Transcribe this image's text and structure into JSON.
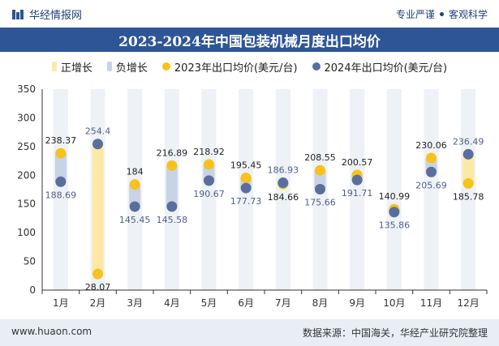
{
  "header": {
    "brand": "华经情报网",
    "tag1": "专业严谨",
    "tag2": "客观科学"
  },
  "footer": {
    "website": "www.huaon.com",
    "source": "数据来源：中国海关，华经产业研究院整理"
  },
  "legend": {
    "pos": "正增长",
    "neg": "负增长",
    "s2023": "2023年出口均价(美元/台)",
    "s2024": "2024年出口均价(美元/台)"
  },
  "colors": {
    "accent": "#2e5596",
    "positive_bar": "#fde9a6",
    "negative_bar": "#c9d3e6",
    "dot_2023": "#f7c21b",
    "dot_2024": "#5a6e9c",
    "label_2023": "#222222",
    "label_2024": "#4f5f88",
    "grid_col": "#eef1f6"
  },
  "chart_data": {
    "type": "scatter",
    "title": "2023-2024年中国包装机械月度出口均价",
    "categories": [
      "1月",
      "2月",
      "3月",
      "4月",
      "5月",
      "6月",
      "7月",
      "8月",
      "9月",
      "10月",
      "11月",
      "12月"
    ],
    "series": [
      {
        "name": "2023年出口均价(美元/台)",
        "values": [
          238.37,
          28.07,
          184,
          216.89,
          218.92,
          195.45,
          184.66,
          208.55,
          200.57,
          140.99,
          230.06,
          185.78
        ]
      },
      {
        "name": "2024年出口均价(美元/台)",
        "values": [
          188.69,
          254.4,
          145.45,
          145.58,
          190.67,
          177.73,
          186.93,
          175.66,
          191.71,
          135.86,
          205.69,
          236.49
        ]
      }
    ],
    "ylim": [
      0,
      350
    ],
    "yticks": [
      0,
      50,
      100,
      150,
      200,
      250,
      300,
      350
    ],
    "legend_position": "top"
  }
}
